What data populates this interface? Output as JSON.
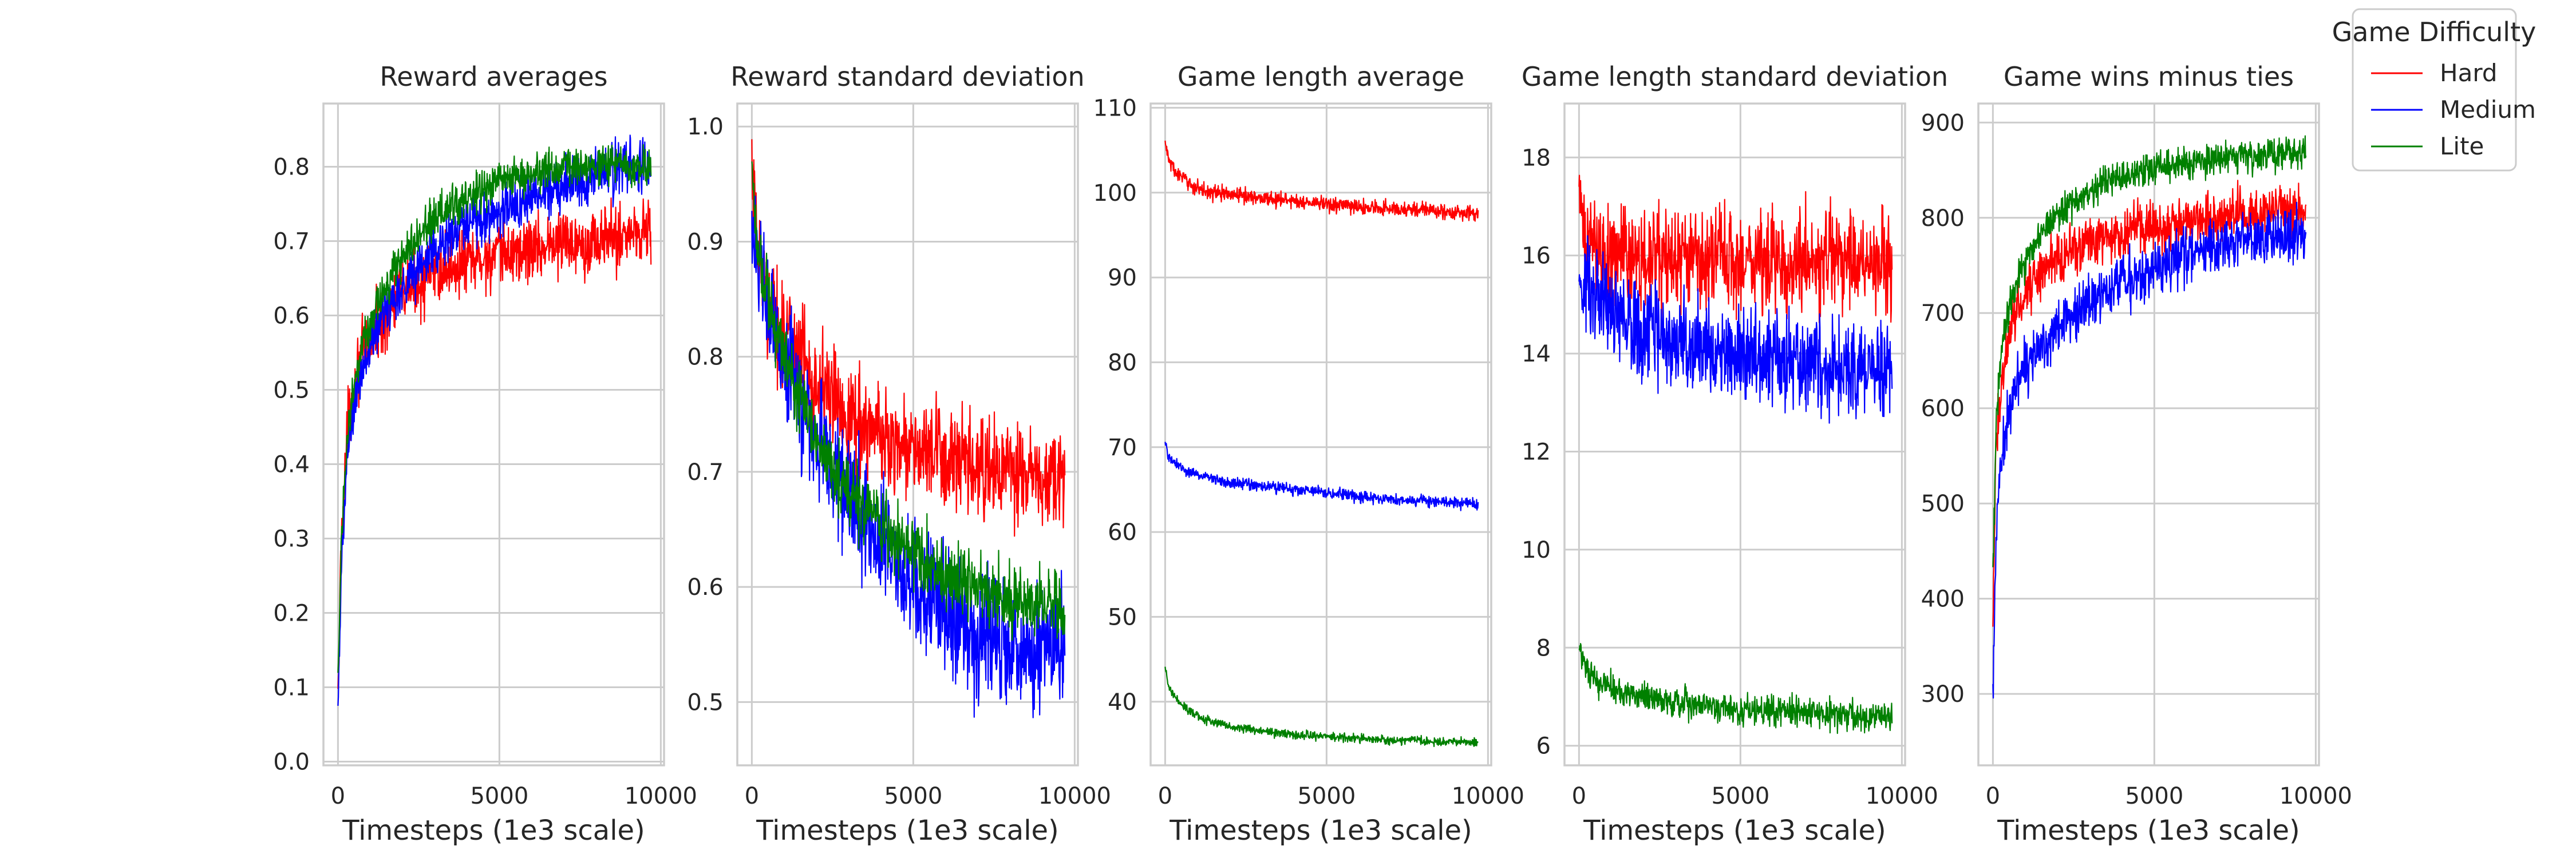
{
  "legend": {
    "title": "Game Difficulty",
    "placement": "upper right, outside plots",
    "entries": [
      {
        "name": "Hard",
        "color": "#ff0000"
      },
      {
        "name": "Medium",
        "color": "#0000ff"
      },
      {
        "name": "Lite",
        "color": "#008000"
      }
    ]
  },
  "chart_data": [
    {
      "type": "line",
      "title": "Reward averages",
      "xlabel": "Timesteps (1e3 scale)",
      "ylabel": "",
      "xlim": [
        -450,
        10100
      ],
      "ylim": [
        -0.005,
        0.885
      ],
      "xticks": [
        0,
        5000,
        10000
      ],
      "yticks": [
        0.0,
        0.1,
        0.2,
        0.3,
        0.4,
        0.5,
        0.6,
        0.7,
        0.8
      ],
      "xtick_labels": [
        "0",
        "5000",
        "10000"
      ],
      "ytick_labels": [
        "0.0",
        "0.1",
        "0.2",
        "0.3",
        "0.4",
        "0.5",
        "0.6",
        "0.7",
        "0.8"
      ],
      "grid": true,
      "series": [
        {
          "name": "Hard",
          "color": "#ff0000",
          "x": [
            0,
            100,
            300,
            600,
            1000,
            1500,
            2000,
            3000,
            4000,
            5000,
            6000,
            7000,
            8000,
            9000,
            9700
          ],
          "y": [
            0.07,
            0.3,
            0.45,
            0.53,
            0.57,
            0.6,
            0.63,
            0.66,
            0.67,
            0.68,
            0.69,
            0.7,
            0.7,
            0.71,
            0.72
          ],
          "noise": 0.03
        },
        {
          "name": "Medium",
          "color": "#0000ff",
          "x": [
            0,
            100,
            300,
            600,
            1000,
            1500,
            2000,
            3000,
            4000,
            5000,
            6000,
            7000,
            8000,
            9000,
            9700
          ],
          "y": [
            0.05,
            0.25,
            0.42,
            0.5,
            0.56,
            0.61,
            0.64,
            0.69,
            0.72,
            0.74,
            0.76,
            0.78,
            0.79,
            0.8,
            0.8
          ],
          "noise": 0.025
        },
        {
          "name": "Lite",
          "color": "#008000",
          "x": [
            0,
            100,
            300,
            600,
            1000,
            1500,
            2000,
            3000,
            4000,
            5000,
            6000,
            7000,
            8000,
            9000,
            9700
          ],
          "y": [
            0.1,
            0.3,
            0.45,
            0.53,
            0.59,
            0.64,
            0.68,
            0.73,
            0.76,
            0.78,
            0.79,
            0.8,
            0.8,
            0.8,
            0.8
          ],
          "noise": 0.018
        }
      ]
    },
    {
      "type": "line",
      "title": "Reward standard deviation",
      "xlabel": "Timesteps (1e3 scale)",
      "ylabel": "",
      "xlim": [
        -450,
        10100
      ],
      "ylim": [
        0.445,
        1.02
      ],
      "xticks": [
        0,
        5000,
        10000
      ],
      "yticks": [
        0.5,
        0.6,
        0.7,
        0.8,
        0.9,
        1.0
      ],
      "xtick_labels": [
        "0",
        "5000",
        "10000"
      ],
      "ytick_labels": [
        "0.5",
        "0.6",
        "0.7",
        "0.8",
        "0.9",
        "1.0"
      ],
      "grid": true,
      "series": [
        {
          "name": "Hard",
          "color": "#ff0000",
          "x": [
            0,
            100,
            300,
            600,
            1000,
            1500,
            2000,
            3000,
            4000,
            5000,
            6000,
            7000,
            8000,
            9000,
            9700
          ],
          "y": [
            0.95,
            0.91,
            0.87,
            0.84,
            0.82,
            0.8,
            0.78,
            0.75,
            0.73,
            0.72,
            0.71,
            0.7,
            0.7,
            0.69,
            0.69
          ],
          "noise": 0.03
        },
        {
          "name": "Medium",
          "color": "#0000ff",
          "x": [
            0,
            100,
            300,
            600,
            1000,
            1500,
            2000,
            3000,
            4000,
            5000,
            6000,
            7000,
            8000,
            9000,
            9700
          ],
          "y": [
            0.93,
            0.9,
            0.86,
            0.83,
            0.8,
            0.76,
            0.73,
            0.68,
            0.64,
            0.6,
            0.58,
            0.56,
            0.55,
            0.54,
            0.54
          ],
          "noise": 0.035
        },
        {
          "name": "Lite",
          "color": "#008000",
          "x": [
            0,
            100,
            300,
            600,
            1000,
            1500,
            2000,
            3000,
            4000,
            5000,
            6000,
            7000,
            8000,
            9000,
            9700
          ],
          "y": [
            0.97,
            0.92,
            0.88,
            0.84,
            0.8,
            0.76,
            0.73,
            0.68,
            0.65,
            0.63,
            0.61,
            0.6,
            0.59,
            0.59,
            0.58
          ],
          "noise": 0.02
        }
      ]
    },
    {
      "type": "line",
      "title": "Game length average",
      "xlabel": "Timesteps (1e3 scale)",
      "ylabel": "",
      "xlim": [
        -450,
        10100
      ],
      "ylim": [
        32.5,
        110.5
      ],
      "xticks": [
        0,
        5000,
        10000
      ],
      "yticks": [
        40,
        50,
        60,
        70,
        80,
        90,
        100,
        110
      ],
      "xtick_labels": [
        "0",
        "5000",
        "10000"
      ],
      "ytick_labels": [
        "40",
        "50",
        "60",
        "70",
        "80",
        "90",
        "100",
        "110"
      ],
      "grid": true,
      "series": [
        {
          "name": "Hard",
          "color": "#ff0000",
          "x": [
            0,
            100,
            300,
            600,
            1000,
            1500,
            2000,
            3000,
            4000,
            5000,
            6000,
            7000,
            8000,
            9000,
            9700
          ],
          "y": [
            106,
            104,
            102.5,
            101.5,
            100.5,
            100,
            99.8,
            99.4,
            99,
            98.6,
            98.3,
            98.1,
            98,
            97.6,
            97.5
          ],
          "noise": 0.6
        },
        {
          "name": "Medium",
          "color": "#0000ff",
          "x": [
            0,
            100,
            300,
            600,
            1000,
            1500,
            2000,
            3000,
            4000,
            5000,
            6000,
            7000,
            8000,
            9000,
            9700
          ],
          "y": [
            70.5,
            69,
            68,
            67.3,
            66.8,
            66.3,
            65.9,
            65.4,
            65,
            64.6,
            64.2,
            63.9,
            63.6,
            63.4,
            63.3
          ],
          "noise": 0.45
        },
        {
          "name": "Lite",
          "color": "#008000",
          "x": [
            0,
            100,
            300,
            600,
            1000,
            1500,
            2000,
            3000,
            4000,
            5000,
            6000,
            7000,
            8000,
            9000,
            9700
          ],
          "y": [
            44,
            42,
            40.5,
            39.3,
            38.3,
            37.6,
            37.1,
            36.5,
            36.1,
            35.9,
            35.7,
            35.5,
            35.4,
            35.3,
            35.2
          ],
          "noise": 0.35
        }
      ]
    },
    {
      "type": "line",
      "title": "Game length standard deviation",
      "xlabel": "Timesteps (1e3 scale)",
      "ylabel": "",
      "xlim": [
        -450,
        10100
      ],
      "ylim": [
        5.6,
        19.1
      ],
      "xticks": [
        0,
        5000,
        10000
      ],
      "yticks": [
        6,
        8,
        10,
        12,
        14,
        16,
        18
      ],
      "xtick_labels": [
        "0",
        "5000",
        "10000"
      ],
      "ytick_labels": [
        "6",
        "8",
        "10",
        "12",
        "14",
        "16",
        "18"
      ],
      "grid": true,
      "series": [
        {
          "name": "Hard",
          "color": "#ff0000",
          "x": [
            0,
            100,
            300,
            600,
            1000,
            1500,
            2000,
            3000,
            4000,
            5000,
            6000,
            7000,
            8000,
            9000,
            9700
          ],
          "y": [
            17,
            16.6,
            16.3,
            16.1,
            16,
            16,
            15.9,
            15.9,
            15.9,
            15.9,
            15.9,
            15.9,
            15.9,
            15.9,
            15.9
          ],
          "noise": 0.7
        },
        {
          "name": "Medium",
          "color": "#0000ff",
          "x": [
            0,
            100,
            300,
            600,
            1000,
            1500,
            2000,
            3000,
            4000,
            5000,
            6000,
            7000,
            8000,
            9000,
            9700
          ],
          "y": [
            16,
            15.5,
            15.2,
            15,
            14.8,
            14.6,
            14.5,
            14.3,
            14.1,
            14,
            13.9,
            13.8,
            13.7,
            13.6,
            13.6
          ],
          "noise": 0.65
        },
        {
          "name": "Lite",
          "color": "#008000",
          "x": [
            0,
            100,
            300,
            600,
            1000,
            1500,
            2000,
            3000,
            4000,
            5000,
            6000,
            7000,
            8000,
            9000,
            9700
          ],
          "y": [
            8.1,
            7.8,
            7.5,
            7.3,
            7.2,
            7.1,
            7,
            6.9,
            6.8,
            6.7,
            6.7,
            6.7,
            6.6,
            6.6,
            6.6
          ],
          "noise": 0.2
        }
      ]
    },
    {
      "type": "line",
      "title": "Game wins minus ties",
      "xlabel": "Timesteps (1e3 scale)",
      "ylabel": "",
      "xlim": [
        -450,
        10100
      ],
      "ylim": [
        225,
        920
      ],
      "xticks": [
        0,
        5000,
        10000
      ],
      "yticks": [
        300,
        400,
        500,
        600,
        700,
        800,
        900
      ],
      "xtick_labels": [
        "0",
        "5000",
        "10000"
      ],
      "ytick_labels": [
        "300",
        "400",
        "500",
        "600",
        "700",
        "800",
        "900"
      ],
      "grid": true,
      "series": [
        {
          "name": "Hard",
          "color": "#ff0000",
          "x": [
            0,
            100,
            300,
            600,
            1000,
            1500,
            2000,
            3000,
            4000,
            5000,
            6000,
            7000,
            8000,
            9000,
            9700
          ],
          "y": [
            380,
            560,
            640,
            690,
            720,
            745,
            760,
            775,
            785,
            792,
            798,
            802,
            805,
            808,
            810
          ],
          "noise": 18
        },
        {
          "name": "Medium",
          "color": "#0000ff",
          "x": [
            0,
            100,
            300,
            600,
            1000,
            1500,
            2000,
            3000,
            4000,
            5000,
            6000,
            7000,
            8000,
            9000,
            9700
          ],
          "y": [
            290,
            480,
            560,
            610,
            640,
            665,
            685,
            712,
            732,
            748,
            760,
            770,
            776,
            782,
            785
          ],
          "noise": 20
        },
        {
          "name": "Lite",
          "color": "#008000",
          "x": [
            0,
            100,
            300,
            600,
            1000,
            1500,
            2000,
            3000,
            4000,
            5000,
            6000,
            7000,
            8000,
            9000,
            9700
          ],
          "y": [
            420,
            590,
            670,
            720,
            755,
            785,
            805,
            828,
            842,
            852,
            858,
            862,
            865,
            867,
            868
          ],
          "noise": 12
        }
      ]
    }
  ]
}
